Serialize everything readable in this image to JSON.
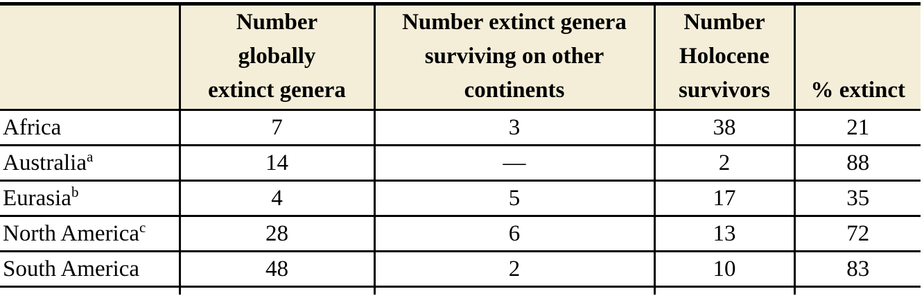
{
  "colors": {
    "header_bg": "#f4eed8",
    "border_color": "#000000",
    "text_color": "#000000",
    "page_bg": "#ffffff"
  },
  "table": {
    "headers": [
      {
        "label": "",
        "lines": []
      },
      {
        "label": "Number globally extinct genera",
        "lines": [
          "Number",
          "globally",
          "extinct genera"
        ]
      },
      {
        "label": "Number extinct genera surviving on other continents",
        "lines": [
          "Number extinct genera",
          "surviving on other",
          "continents"
        ]
      },
      {
        "label": "Number Holocene survivors",
        "lines": [
          "Number",
          "Holocene",
          "survivors"
        ]
      },
      {
        "label": "% extinct",
        "lines": [
          "% extinct"
        ]
      }
    ],
    "rows": [
      {
        "region": "Africa",
        "sup": "",
        "cells": [
          "7",
          "3",
          "38",
          "21"
        ]
      },
      {
        "region": "Australia",
        "sup": "a",
        "cells": [
          "14",
          "—",
          "2",
          "88"
        ]
      },
      {
        "region": "Eurasia",
        "sup": "b",
        "cells": [
          "4",
          "5",
          "17",
          "35"
        ]
      },
      {
        "region": "North America",
        "sup": "c",
        "cells": [
          "28",
          "6",
          "13",
          "72"
        ]
      },
      {
        "region": "South America",
        "sup": "",
        "cells": [
          "48",
          "2",
          "10",
          "83"
        ]
      }
    ]
  },
  "chart_data": {
    "type": "table",
    "columns": [
      "",
      "Number globally extinct genera",
      "Number extinct genera surviving on other continents",
      "Number Holocene survivors",
      "% extinct"
    ],
    "rows": [
      {
        "region": "Africa",
        "footnote_marker": null,
        "number_globally_extinct_genera": 7,
        "number_extinct_genera_surviving_on_other_continents": 3,
        "number_holocene_survivors": 38,
        "percent_extinct": 21
      },
      {
        "region": "Australia",
        "footnote_marker": "a",
        "number_globally_extinct_genera": 14,
        "number_extinct_genera_surviving_on_other_continents": null,
        "number_holocene_survivors": 2,
        "percent_extinct": 88
      },
      {
        "region": "Eurasia",
        "footnote_marker": "b",
        "number_globally_extinct_genera": 4,
        "number_extinct_genera_surviving_on_other_continents": 5,
        "number_holocene_survivors": 17,
        "percent_extinct": 35
      },
      {
        "region": "North America",
        "footnote_marker": "c",
        "number_globally_extinct_genera": 28,
        "number_extinct_genera_surviving_on_other_continents": 6,
        "number_holocene_survivors": 13,
        "percent_extinct": 72
      },
      {
        "region": "South America",
        "footnote_marker": null,
        "number_globally_extinct_genera": 48,
        "number_extinct_genera_surviving_on_other_continents": 2,
        "number_holocene_survivors": 10,
        "percent_extinct": 83
      }
    ],
    "missing_value_glyph": "—",
    "layout_hints": {
      "header_background": "#f4eed8",
      "grid": "horizontal rules full width, vertical rules between columns only",
      "header_vertical_align": "bottom"
    }
  }
}
